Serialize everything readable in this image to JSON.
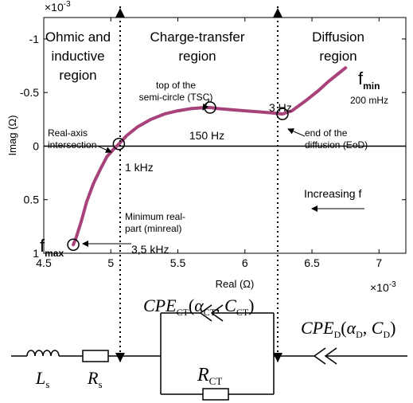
{
  "chart_data": {
    "type": "line",
    "xlabel": "Real (Ω)",
    "ylabel": "Imag (Ω)",
    "x_multiplier": "×10",
    "x_multiplier_exp": "-3",
    "y_multiplier": "×10",
    "y_multiplier_exp": "-3",
    "xlim": [
      4.5,
      7.2
    ],
    "ylim": [
      -1.2,
      1.0
    ],
    "y_reversed": true,
    "grid": false,
    "x_ticks": [
      4.5,
      5,
      5.5,
      6,
      6.5,
      7
    ],
    "x_tick_labels": [
      "4.5",
      "5",
      "5.5",
      "6",
      "6.5",
      "7"
    ],
    "y_ticks": [
      -1,
      -0.5,
      0,
      0.5,
      1
    ],
    "y_tick_labels": [
      "-1",
      "-0.5",
      "0",
      "0.5",
      "1"
    ],
    "series": [
      {
        "color": "#a8427a",
        "x": [
          4.72,
          4.74,
          4.78,
          4.82,
          4.87,
          4.92,
          4.97,
          5.02,
          5.06,
          5.12,
          5.2,
          5.3,
          5.4,
          5.5,
          5.6,
          5.7,
          5.74,
          5.8,
          5.9,
          6.0,
          6.1,
          6.2,
          6.28,
          6.35,
          6.45,
          6.55,
          6.62,
          6.7,
          6.75
        ],
        "y": [
          0.92,
          0.86,
          0.7,
          0.52,
          0.35,
          0.22,
          0.1,
          0.03,
          -0.02,
          -0.1,
          -0.18,
          -0.25,
          -0.3,
          -0.33,
          -0.35,
          -0.36,
          -0.36,
          -0.35,
          -0.34,
          -0.33,
          -0.32,
          -0.31,
          -0.3,
          -0.33,
          -0.42,
          -0.52,
          -0.6,
          -0.68,
          -0.73
        ]
      }
    ],
    "markers": [
      {
        "x": 4.72,
        "y": 0.92
      },
      {
        "x": 5.06,
        "y": -0.02
      },
      {
        "x": 5.74,
        "y": -0.36
      },
      {
        "x": 6.28,
        "y": -0.3
      }
    ],
    "region_dividers_x": [
      5.08,
      6.25
    ],
    "regions": [
      {
        "line1": "Ohmic and",
        "line2": "inductive",
        "line3": "region"
      },
      {
        "line1": "Charge-transfer",
        "line2": "region"
      },
      {
        "line1": "Diffusion",
        "line2": "region"
      }
    ],
    "annotations": {
      "tsc": {
        "line1": "top of the",
        "line2": "semi-circle (TSC)",
        "freq": "150 Hz"
      },
      "real_axis": {
        "line1": "Real-axis",
        "line2": "intersection",
        "freq": "1 kHz"
      },
      "eod": {
        "line1": "end of the",
        "line2": "diffusion (EoD)",
        "freq": "3 Hz"
      },
      "minreal": {
        "line1": "Minimum real-",
        "line2": "part (minreal)",
        "freq": "3,5 kHz"
      },
      "fmax": {
        "f": "f",
        "sub": "max"
      },
      "fmin": {
        "f": "f",
        "sub": "min",
        "freq": "200 mHz"
      },
      "increasing": "Increasing f"
    }
  },
  "circuit": {
    "L": "L",
    "L_sub": "s",
    "R": "R",
    "R_sub": "s",
    "RCT": "R",
    "RCT_sub": "CT",
    "cpe_ct": {
      "name": "CPE",
      "sub": "CT",
      "open": "(",
      "alpha": "α",
      "alpha_sub": "CT",
      "comma": ", ",
      "c": "C",
      "c_sub": "CT",
      "close": ")"
    },
    "cpe_d": {
      "name": "CPE",
      "sub": "D",
      "open": "(",
      "alpha": "α",
      "alpha_sub": "D",
      "comma": ", ",
      "c": "C",
      "c_sub": "D",
      "close": ")"
    }
  }
}
